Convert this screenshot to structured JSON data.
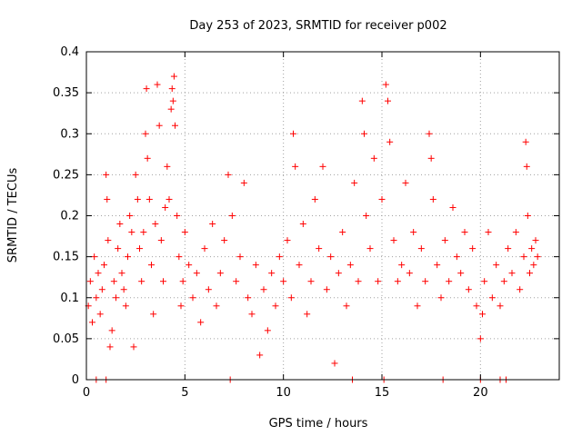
{
  "chart_data": {
    "type": "scatter",
    "title": "Day 253 of 2023, SRMTID for receiver p002",
    "xlabel": "GPS time / hours",
    "ylabel": "SRMTID / TECUs",
    "xlim": [
      0,
      24
    ],
    "ylim": [
      0,
      0.4
    ],
    "xticks": [
      0,
      5,
      10,
      15,
      20
    ],
    "xtick_labels": [
      "0",
      "5",
      "10",
      "15",
      "20"
    ],
    "yticks": [
      0,
      0.05,
      0.1,
      0.15,
      0.2,
      0.25,
      0.3,
      0.35,
      0.4
    ],
    "ytick_labels": [
      "0",
      "0.05",
      "0.1",
      "0.15",
      "0.2",
      "0.25",
      "0.3",
      "0.35",
      "0.4"
    ],
    "grid": true,
    "marker": "plus",
    "color": "#ff0000",
    "series": [
      {
        "name": "SRMTID",
        "points": [
          [
            0.1,
            0.09
          ],
          [
            0.2,
            0.12
          ],
          [
            0.3,
            0.07
          ],
          [
            0.4,
            0.15
          ],
          [
            0.5,
            0.1
          ],
          [
            0.6,
            0.13
          ],
          [
            0.7,
            0.08
          ],
          [
            0.8,
            0.11
          ],
          [
            0.9,
            0.14
          ],
          [
            1.0,
            0.25
          ],
          [
            1.05,
            0.22
          ],
          [
            1.1,
            0.17
          ],
          [
            1.2,
            0.04
          ],
          [
            1.3,
            0.06
          ],
          [
            1.4,
            0.12
          ],
          [
            1.5,
            0.1
          ],
          [
            1.6,
            0.16
          ],
          [
            1.7,
            0.19
          ],
          [
            1.8,
            0.13
          ],
          [
            1.9,
            0.11
          ],
          [
            2.0,
            0.09
          ],
          [
            2.1,
            0.15
          ],
          [
            2.2,
            0.2
          ],
          [
            2.3,
            0.18
          ],
          [
            2.4,
            0.04
          ],
          [
            2.5,
            0.25
          ],
          [
            2.6,
            0.22
          ],
          [
            2.7,
            0.16
          ],
          [
            2.8,
            0.12
          ],
          [
            2.9,
            0.18
          ],
          [
            3.0,
            0.3
          ],
          [
            3.05,
            0.355
          ],
          [
            3.1,
            0.27
          ],
          [
            3.2,
            0.22
          ],
          [
            3.3,
            0.14
          ],
          [
            3.4,
            0.08
          ],
          [
            3.5,
            0.19
          ],
          [
            3.6,
            0.36
          ],
          [
            3.7,
            0.31
          ],
          [
            3.8,
            0.17
          ],
          [
            3.9,
            0.12
          ],
          [
            4.0,
            0.21
          ],
          [
            4.1,
            0.26
          ],
          [
            4.2,
            0.22
          ],
          [
            4.3,
            0.33
          ],
          [
            4.35,
            0.355
          ],
          [
            4.4,
            0.34
          ],
          [
            4.45,
            0.37
          ],
          [
            4.5,
            0.31
          ],
          [
            4.6,
            0.2
          ],
          [
            4.7,
            0.15
          ],
          [
            4.8,
            0.09
          ],
          [
            4.9,
            0.12
          ],
          [
            5.0,
            0.18
          ],
          [
            5.2,
            0.14
          ],
          [
            5.4,
            0.1
          ],
          [
            5.6,
            0.13
          ],
          [
            5.8,
            0.07
          ],
          [
            6.0,
            0.16
          ],
          [
            6.2,
            0.11
          ],
          [
            6.4,
            0.19
          ],
          [
            6.6,
            0.09
          ],
          [
            6.8,
            0.13
          ],
          [
            7.0,
            0.17
          ],
          [
            7.2,
            0.25
          ],
          [
            7.4,
            0.2
          ],
          [
            7.6,
            0.12
          ],
          [
            7.8,
            0.15
          ],
          [
            8.0,
            0.24
          ],
          [
            8.2,
            0.1
          ],
          [
            8.4,
            0.08
          ],
          [
            8.6,
            0.14
          ],
          [
            8.8,
            0.03
          ],
          [
            9.0,
            0.11
          ],
          [
            9.2,
            0.06
          ],
          [
            9.4,
            0.13
          ],
          [
            9.6,
            0.09
          ],
          [
            9.8,
            0.15
          ],
          [
            10.0,
            0.12
          ],
          [
            10.2,
            0.17
          ],
          [
            10.4,
            0.1
          ],
          [
            10.5,
            0.3
          ],
          [
            10.6,
            0.26
          ],
          [
            10.8,
            0.14
          ],
          [
            11.0,
            0.19
          ],
          [
            11.2,
            0.08
          ],
          [
            11.4,
            0.12
          ],
          [
            11.6,
            0.22
          ],
          [
            11.8,
            0.16
          ],
          [
            12.0,
            0.26
          ],
          [
            12.2,
            0.11
          ],
          [
            12.4,
            0.15
          ],
          [
            12.6,
            0.02
          ],
          [
            12.8,
            0.13
          ],
          [
            13.0,
            0.18
          ],
          [
            13.2,
            0.09
          ],
          [
            13.4,
            0.14
          ],
          [
            13.6,
            0.24
          ],
          [
            13.8,
            0.12
          ],
          [
            14.0,
            0.34
          ],
          [
            14.1,
            0.3
          ],
          [
            14.2,
            0.2
          ],
          [
            14.4,
            0.16
          ],
          [
            14.6,
            0.27
          ],
          [
            14.8,
            0.12
          ],
          [
            15.0,
            0.22
          ],
          [
            15.2,
            0.36
          ],
          [
            15.3,
            0.34
          ],
          [
            15.4,
            0.29
          ],
          [
            15.6,
            0.17
          ],
          [
            15.8,
            0.12
          ],
          [
            16.0,
            0.14
          ],
          [
            16.2,
            0.24
          ],
          [
            16.4,
            0.13
          ],
          [
            16.6,
            0.18
          ],
          [
            16.8,
            0.09
          ],
          [
            17.0,
            0.16
          ],
          [
            17.2,
            0.12
          ],
          [
            17.4,
            0.3
          ],
          [
            17.5,
            0.27
          ],
          [
            17.6,
            0.22
          ],
          [
            17.8,
            0.14
          ],
          [
            18.0,
            0.1
          ],
          [
            18.2,
            0.17
          ],
          [
            18.4,
            0.12
          ],
          [
            18.6,
            0.21
          ],
          [
            18.8,
            0.15
          ],
          [
            19.0,
            0.13
          ],
          [
            19.2,
            0.18
          ],
          [
            19.4,
            0.11
          ],
          [
            19.6,
            0.16
          ],
          [
            19.8,
            0.09
          ],
          [
            20.0,
            0.05
          ],
          [
            20.1,
            0.08
          ],
          [
            20.2,
            0.12
          ],
          [
            20.4,
            0.18
          ],
          [
            20.6,
            0.1
          ],
          [
            20.8,
            0.14
          ],
          [
            21.0,
            0.09
          ],
          [
            21.2,
            0.12
          ],
          [
            21.4,
            0.16
          ],
          [
            21.6,
            0.13
          ],
          [
            21.8,
            0.18
          ],
          [
            22.0,
            0.11
          ],
          [
            22.2,
            0.15
          ],
          [
            22.3,
            0.29
          ],
          [
            22.35,
            0.26
          ],
          [
            22.4,
            0.2
          ],
          [
            22.5,
            0.13
          ],
          [
            22.6,
            0.16
          ],
          [
            22.7,
            0.14
          ],
          [
            22.8,
            0.17
          ],
          [
            22.9,
            0.15
          ],
          [
            0.5,
            0.0
          ],
          [
            1.0,
            0.0
          ],
          [
            7.3,
            0.0
          ],
          [
            13.5,
            0.0
          ],
          [
            15.1,
            0.0
          ],
          [
            18.1,
            0.0
          ],
          [
            20.0,
            0.0
          ],
          [
            21.0,
            0.0
          ],
          [
            21.3,
            0.0
          ]
        ]
      }
    ]
  }
}
